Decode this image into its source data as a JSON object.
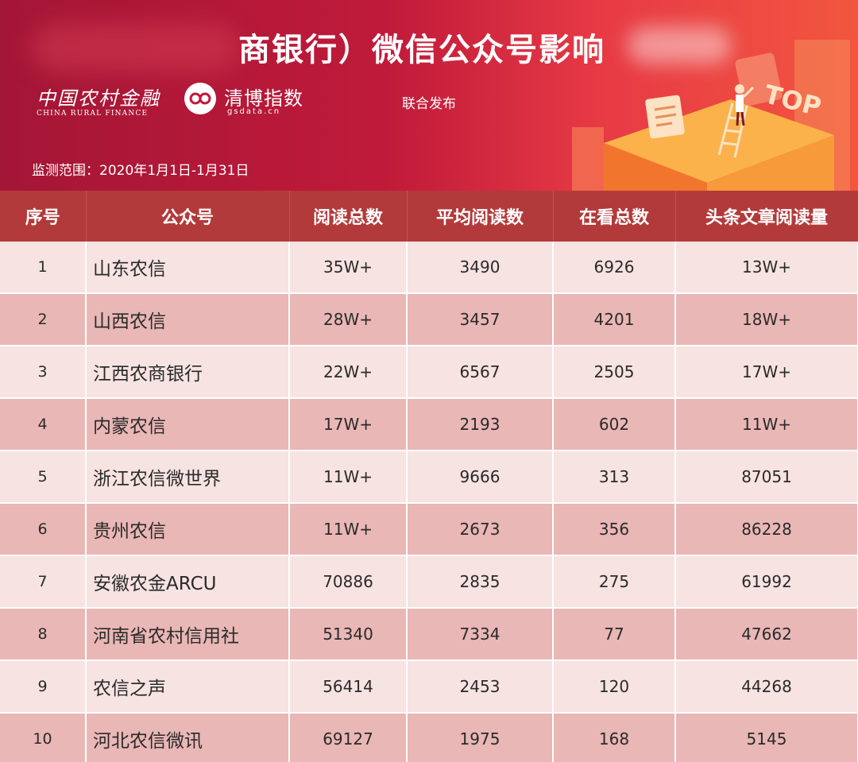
{
  "banner": {
    "title": "商银行）微信公众号影响",
    "logo_cn": "中国农村金融",
    "logo_en": "CHINA RURAL FINANCE",
    "gsdata_name": "清博指数",
    "gsdata_url": "gsdata.cn",
    "joint_release": "联合发布",
    "monitor_range": "监测范围：2020年1月1日-1月31日",
    "top_badge": "TOP"
  },
  "table": {
    "headers": [
      "序号",
      "公众号",
      "阅读总数",
      "平均阅读数",
      "在看总数",
      "头条文章阅读量"
    ],
    "rows": [
      {
        "rank": "1",
        "name": "山东农信",
        "total_reads": "35W+",
        "avg_reads": "3490",
        "likes": "6926",
        "headline_reads": "13W+"
      },
      {
        "rank": "2",
        "name": "山西农信",
        "total_reads": "28W+",
        "avg_reads": "3457",
        "likes": "4201",
        "headline_reads": "18W+"
      },
      {
        "rank": "3",
        "name": "江西农商银行",
        "total_reads": "22W+",
        "avg_reads": "6567",
        "likes": "2505",
        "headline_reads": "17W+"
      },
      {
        "rank": "4",
        "name": "内蒙农信",
        "total_reads": "17W+",
        "avg_reads": "2193",
        "likes": "602",
        "headline_reads": "11W+"
      },
      {
        "rank": "5",
        "name": "浙江农信微世界",
        "total_reads": "11W+",
        "avg_reads": "9666",
        "likes": "313",
        "headline_reads": "87051"
      },
      {
        "rank": "6",
        "name": "贵州农信",
        "total_reads": "11W+",
        "avg_reads": "2673",
        "likes": "356",
        "headline_reads": "86228"
      },
      {
        "rank": "7",
        "name": "安徽农金ARCU",
        "total_reads": "70886",
        "avg_reads": "2835",
        "likes": "275",
        "headline_reads": "61992"
      },
      {
        "rank": "8",
        "name": "河南省农村信用社",
        "total_reads": "51340",
        "avg_reads": "7334",
        "likes": "77",
        "headline_reads": "47662"
      },
      {
        "rank": "9",
        "name": "农信之声",
        "total_reads": "56414",
        "avg_reads": "2453",
        "likes": "120",
        "headline_reads": "44268"
      },
      {
        "rank": "10",
        "name": "河北农信微讯",
        "total_reads": "69127",
        "avg_reads": "1975",
        "likes": "168",
        "headline_reads": "5145"
      }
    ]
  },
  "colors": {
    "header_bg": "#b33a3a",
    "row_light": "#f6e3e2",
    "row_dark": "#e9b7b6",
    "banner_left": "#a41636",
    "banner_right": "#f2563f"
  }
}
